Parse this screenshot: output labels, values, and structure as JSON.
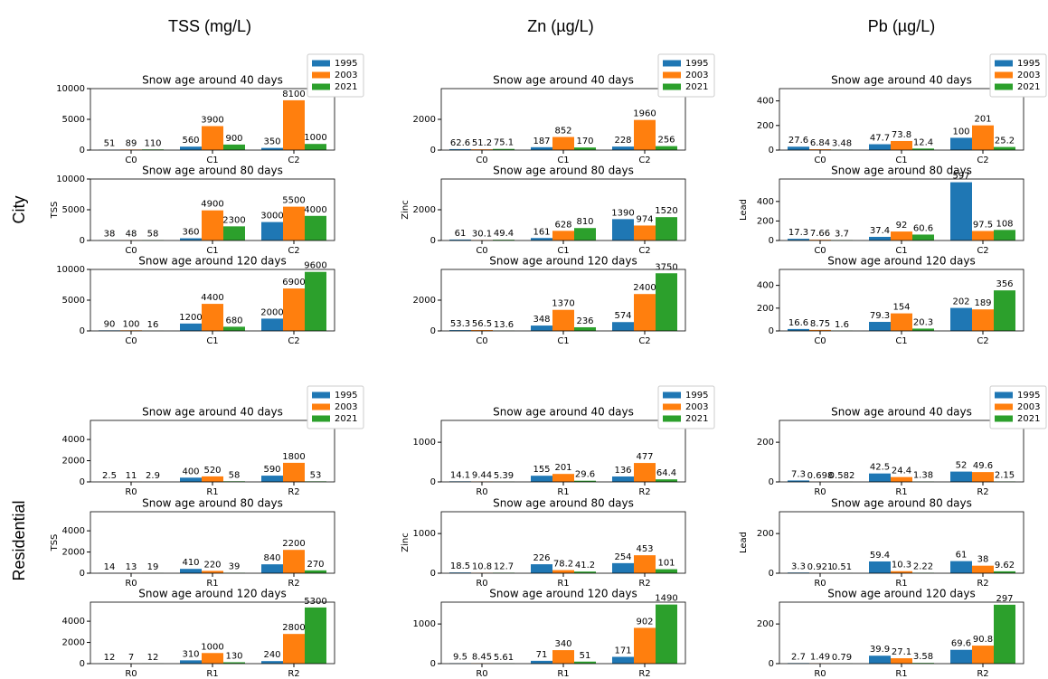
{
  "columns": [
    "TSS (mg/L)",
    "Zn (µg/L)",
    "Pb (µg/L)"
  ],
  "rows": [
    "City",
    "Residential"
  ],
  "chart_data": [
    {
      "type": "bar",
      "title": "Snow age around 40 days",
      "categories": [
        "C0",
        "C1",
        "C2"
      ],
      "legend": "upper right",
      "ylim": [
        0,
        10000
      ],
      "yticks": [
        0,
        5000,
        10000
      ],
      "series": [
        {
          "name": "1995",
          "color": "#1f77b4",
          "values": [
            51,
            560,
            350
          ]
        },
        {
          "name": "2003",
          "color": "#ff7f0e",
          "values": [
            89,
            3900,
            8100
          ]
        },
        {
          "name": "2021",
          "color": "#2ca02c",
          "values": [
            110,
            900,
            1000
          ]
        }
      ]
    },
    {
      "type": "bar",
      "title": "Snow age around 80 days",
      "ylabel": "TSS",
      "categories": [
        "C0",
        "C1",
        "C2"
      ],
      "ylim": [
        0,
        10000
      ],
      "yticks": [
        0,
        5000,
        10000
      ],
      "series": [
        {
          "color": "#1f77b4",
          "values": [
            38,
            360,
            3000
          ]
        },
        {
          "color": "#ff7f0e",
          "values": [
            48,
            4900,
            5500
          ]
        },
        {
          "color": "#2ca02c",
          "values": [
            58,
            2300,
            4000
          ]
        }
      ]
    },
    {
      "type": "bar",
      "title": "Snow age around 120 days",
      "categories": [
        "C0",
        "C1",
        "C2"
      ],
      "ylim": [
        0,
        10000
      ],
      "yticks": [
        0,
        5000,
        10000
      ],
      "series": [
        {
          "color": "#1f77b4",
          "values": [
            90,
            1200,
            2000
          ]
        },
        {
          "color": "#ff7f0e",
          "values": [
            100,
            4400,
            6900
          ]
        },
        {
          "color": "#2ca02c",
          "values": [
            16,
            680,
            9600
          ]
        }
      ]
    },
    {
      "type": "bar",
      "title": "Snow age around 40 days",
      "categories": [
        "C0",
        "C1",
        "C2"
      ],
      "legend": "upper right",
      "ylim": [
        0,
        4000
      ],
      "yticks": [
        0,
        2000
      ],
      "series": [
        {
          "name": "1995",
          "color": "#1f77b4",
          "values": [
            62.6,
            187,
            228
          ]
        },
        {
          "name": "2003",
          "color": "#ff7f0e",
          "values": [
            51.2,
            852,
            1960
          ]
        },
        {
          "name": "2021",
          "color": "#2ca02c",
          "values": [
            75.1,
            170,
            256
          ]
        }
      ]
    },
    {
      "type": "bar",
      "title": "Snow age around 80 days",
      "ylabel": "Zinc",
      "categories": [
        "C0",
        "C1",
        "C2"
      ],
      "ylim": [
        0,
        4000
      ],
      "yticks": [
        0,
        2000
      ],
      "series": [
        {
          "color": "#1f77b4",
          "values": [
            61,
            161,
            1390
          ]
        },
        {
          "color": "#ff7f0e",
          "values": [
            30.1,
            628,
            974
          ]
        },
        {
          "color": "#2ca02c",
          "values": [
            49.4,
            810,
            1520
          ]
        }
      ]
    },
    {
      "type": "bar",
      "title": "Snow age around 120 days",
      "categories": [
        "C0",
        "C1",
        "C2"
      ],
      "ylim": [
        0,
        4000
      ],
      "yticks": [
        0,
        2000
      ],
      "series": [
        {
          "color": "#1f77b4",
          "values": [
            53.3,
            348,
            574
          ]
        },
        {
          "color": "#ff7f0e",
          "values": [
            56.5,
            1370,
            2400
          ]
        },
        {
          "color": "#2ca02c",
          "values": [
            13.6,
            236,
            3750
          ]
        }
      ]
    },
    {
      "type": "bar",
      "title": "Snow age around 40 days",
      "categories": [
        "C0",
        "C1",
        "C2"
      ],
      "legend": "upper right",
      "ylim": [
        0,
        500
      ],
      "yticks": [
        0,
        200,
        400
      ],
      "series": [
        {
          "name": "1995",
          "color": "#1f77b4",
          "values": [
            27.6,
            47.7,
            100
          ]
        },
        {
          "name": "2003",
          "color": "#ff7f0e",
          "values": [
            6.84,
            73.8,
            201
          ]
        },
        {
          "name": "2021",
          "color": "#2ca02c",
          "values": [
            3.48,
            12.4,
            25.2
          ]
        }
      ]
    },
    {
      "type": "bar",
      "title": "Snow age around 80 days",
      "ylabel": "Lead",
      "categories": [
        "C0",
        "C1",
        "C2"
      ],
      "ylim": [
        0,
        630
      ],
      "yticks": [
        0,
        200,
        400
      ],
      "series": [
        {
          "color": "#1f77b4",
          "values": [
            17.3,
            37.4,
            597
          ]
        },
        {
          "color": "#ff7f0e",
          "values": [
            7.66,
            92,
            97.5
          ]
        },
        {
          "color": "#2ca02c",
          "values": [
            3.7,
            60.6,
            108
          ]
        }
      ]
    },
    {
      "type": "bar",
      "title": "Snow age around 120 days",
      "categories": [
        "C0",
        "C1",
        "C2"
      ],
      "ylim": [
        0,
        540
      ],
      "yticks": [
        0,
        200,
        400
      ],
      "series": [
        {
          "color": "#1f77b4",
          "values": [
            16.6,
            79.3,
            202
          ]
        },
        {
          "color": "#ff7f0e",
          "values": [
            8.75,
            154,
            189
          ]
        },
        {
          "color": "#2ca02c",
          "values": [
            1.6,
            20.3,
            356
          ]
        }
      ]
    },
    {
      "type": "bar",
      "title": "Snow age around 40 days",
      "categories": [
        "R0",
        "R1",
        "R2"
      ],
      "legend": "upper right",
      "ylim": [
        0,
        5800
      ],
      "yticks": [
        0,
        2000,
        4000
      ],
      "series": [
        {
          "name": "1995",
          "color": "#1f77b4",
          "values": [
            2.5,
            400,
            590
          ]
        },
        {
          "name": "2003",
          "color": "#ff7f0e",
          "values": [
            11,
            520,
            1800
          ]
        },
        {
          "name": "2021",
          "color": "#2ca02c",
          "values": [
            2.9,
            58,
            53
          ]
        }
      ]
    },
    {
      "type": "bar",
      "title": "Snow age around 80 days",
      "ylabel": "TSS",
      "categories": [
        "R0",
        "R1",
        "R2"
      ],
      "ylim": [
        0,
        5800
      ],
      "yticks": [
        0,
        2000,
        4000
      ],
      "series": [
        {
          "color": "#1f77b4",
          "values": [
            14,
            410,
            840
          ]
        },
        {
          "color": "#ff7f0e",
          "values": [
            13,
            220,
            2200
          ]
        },
        {
          "color": "#2ca02c",
          "values": [
            19,
            39,
            270
          ]
        }
      ]
    },
    {
      "type": "bar",
      "title": "Snow age around 120 days",
      "categories": [
        "R0",
        "R1",
        "R2"
      ],
      "ylim": [
        0,
        5800
      ],
      "yticks": [
        0,
        2000,
        4000
      ],
      "series": [
        {
          "color": "#1f77b4",
          "values": [
            12,
            310,
            240
          ]
        },
        {
          "color": "#ff7f0e",
          "values": [
            7,
            1000,
            2800
          ]
        },
        {
          "color": "#2ca02c",
          "values": [
            12,
            130,
            5300
          ]
        }
      ]
    },
    {
      "type": "bar",
      "title": "Snow age around 40 days",
      "categories": [
        "R0",
        "R1",
        "R2"
      ],
      "legend": "upper right",
      "ylim": [
        0,
        1550
      ],
      "yticks": [
        0,
        1000
      ],
      "series": [
        {
          "name": "1995",
          "color": "#1f77b4",
          "values": [
            14.1,
            155,
            136
          ]
        },
        {
          "name": "2003",
          "color": "#ff7f0e",
          "values": [
            9.44,
            201,
            477
          ]
        },
        {
          "name": "2021",
          "color": "#2ca02c",
          "values": [
            5.39,
            29.6,
            64.4
          ]
        }
      ]
    },
    {
      "type": "bar",
      "title": "Snow age around 80 days",
      "ylabel": "Zinc",
      "categories": [
        "R0",
        "R1",
        "R2"
      ],
      "ylim": [
        0,
        1550
      ],
      "yticks": [
        0,
        1000
      ],
      "series": [
        {
          "color": "#1f77b4",
          "values": [
            18.5,
            226,
            254
          ]
        },
        {
          "color": "#ff7f0e",
          "values": [
            10.8,
            78.2,
            453
          ]
        },
        {
          "color": "#2ca02c",
          "values": [
            12.7,
            41.2,
            101
          ]
        }
      ]
    },
    {
      "type": "bar",
      "title": "Snow age around 120 days",
      "categories": [
        "R0",
        "R1",
        "R2"
      ],
      "ylim": [
        0,
        1550
      ],
      "yticks": [
        0,
        1000
      ],
      "series": [
        {
          "color": "#1f77b4",
          "values": [
            9.5,
            71,
            171
          ]
        },
        {
          "color": "#ff7f0e",
          "values": [
            8.45,
            340,
            902
          ]
        },
        {
          "color": "#2ca02c",
          "values": [
            5.61,
            51,
            1490
          ]
        }
      ]
    },
    {
      "type": "bar",
      "title": "Snow age around 40 days",
      "categories": [
        "R0",
        "R1",
        "R2"
      ],
      "legend": "upper right",
      "ylim": [
        0,
        310
      ],
      "yticks": [
        0,
        200
      ],
      "series": [
        {
          "name": "1995",
          "color": "#1f77b4",
          "values": [
            7.3,
            42.5,
            52
          ]
        },
        {
          "name": "2003",
          "color": "#ff7f0e",
          "values": [
            0.698,
            24.4,
            49.6
          ]
        },
        {
          "name": "2021",
          "color": "#2ca02c",
          "values": [
            0.582,
            1.38,
            2.15
          ]
        }
      ]
    },
    {
      "type": "bar",
      "title": "Snow age around 80 days",
      "ylabel": "Lead",
      "categories": [
        "R0",
        "R1",
        "R2"
      ],
      "ylim": [
        0,
        310
      ],
      "yticks": [
        0,
        200
      ],
      "series": [
        {
          "color": "#1f77b4",
          "values": [
            3.3,
            59.4,
            61
          ]
        },
        {
          "color": "#ff7f0e",
          "values": [
            0.921,
            10.3,
            38
          ]
        },
        {
          "color": "#2ca02c",
          "values": [
            0.51,
            2.22,
            9.62
          ]
        }
      ]
    },
    {
      "type": "bar",
      "title": "Snow age around 120 days",
      "categories": [
        "R0",
        "R1",
        "R2"
      ],
      "ylim": [
        0,
        310
      ],
      "yticks": [
        0,
        200
      ],
      "series": [
        {
          "color": "#1f77b4",
          "values": [
            2.7,
            39.9,
            69.6
          ]
        },
        {
          "color": "#ff7f0e",
          "values": [
            1.49,
            27.1,
            90.8
          ]
        },
        {
          "color": "#2ca02c",
          "values": [
            0.79,
            3.58,
            297
          ]
        }
      ]
    }
  ]
}
